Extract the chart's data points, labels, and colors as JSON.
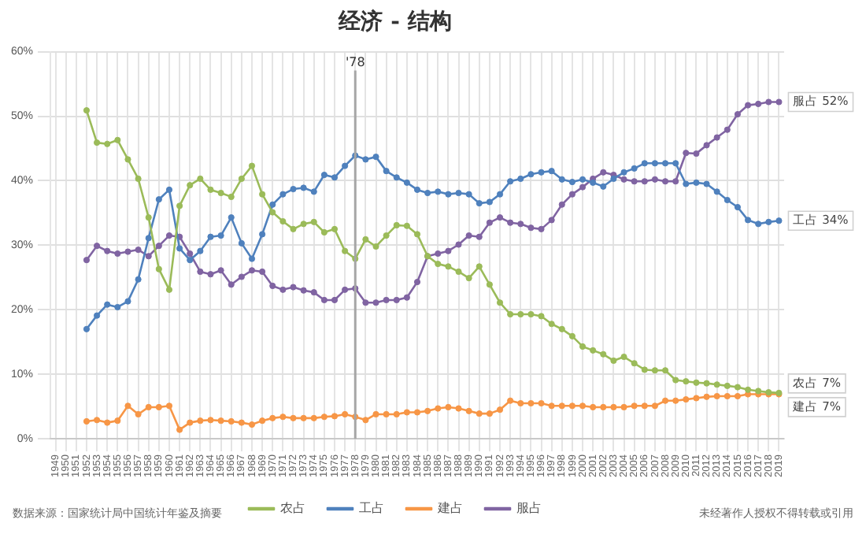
{
  "chart_data": {
    "type": "line",
    "title": "经济 - 结构",
    "categories": [
      "1949",
      "1950",
      "1951",
      "1952",
      "1953",
      "1954",
      "1955",
      "1956",
      "1957",
      "1958",
      "1959",
      "1960",
      "1961",
      "1962",
      "1963",
      "1964",
      "1965",
      "1966",
      "1967",
      "1968",
      "1969",
      "1970",
      "1971",
      "1972",
      "1973",
      "1974",
      "1975",
      "1976",
      "1977",
      "1978",
      "1979",
      "1980",
      "1981",
      "1982",
      "1983",
      "1984",
      "1985",
      "1986",
      "1987",
      "1988",
      "1989",
      "1990",
      "1991",
      "1992",
      "1993",
      "1994",
      "1995",
      "1996",
      "1997",
      "1998",
      "1999",
      "2000",
      "2001",
      "2002",
      "2003",
      "2004",
      "2005",
      "2006",
      "2007",
      "2008",
      "2009",
      "2010",
      "2011",
      "2012",
      "2013",
      "2014",
      "2015",
      "2016",
      "2017",
      "2018",
      "2019"
    ],
    "series": [
      {
        "name": "农占",
        "color": "#9bbb59",
        "values": [
          null,
          null,
          null,
          50.9,
          45.9,
          45.7,
          46.3,
          43.3,
          40.3,
          34.3,
          26.3,
          23.1,
          36.1,
          39.3,
          40.3,
          38.6,
          38.1,
          37.5,
          40.3,
          42.3,
          37.9,
          35.1,
          33.7,
          32.5,
          33.3,
          33.6,
          32.0,
          32.5,
          29.1,
          27.9,
          30.9,
          29.8,
          31.5,
          33.1,
          33.0,
          31.7,
          28.3,
          27.1,
          26.7,
          25.9,
          24.9,
          26.7,
          23.9,
          21.1,
          19.3,
          19.3,
          19.3,
          19.0,
          17.8,
          17.0,
          15.9,
          14.3,
          13.7,
          13.1,
          12.1,
          12.7,
          11.7,
          10.7,
          10.6,
          10.6,
          9.1,
          8.9,
          8.7,
          8.6,
          8.4,
          8.2,
          8.0,
          7.6,
          7.4,
          7.2,
          7.1
        ]
      },
      {
        "name": "工占",
        "color": "#4f81bd",
        "values": [
          null,
          null,
          null,
          17.0,
          19.1,
          20.8,
          20.4,
          21.3,
          24.7,
          31.1,
          37.1,
          38.6,
          29.5,
          27.7,
          29.1,
          31.3,
          31.5,
          34.3,
          30.3,
          27.9,
          31.7,
          36.3,
          37.9,
          38.7,
          38.9,
          38.3,
          40.9,
          40.5,
          42.3,
          43.9,
          43.3,
          43.7,
          41.5,
          40.5,
          39.7,
          38.6,
          38.1,
          38.3,
          37.9,
          38.1,
          37.9,
          36.5,
          36.7,
          37.9,
          39.9,
          40.3,
          41.0,
          41.3,
          41.5,
          40.2,
          39.8,
          40.2,
          39.7,
          39.1,
          40.3,
          41.3,
          41.9,
          42.7,
          42.7,
          42.7,
          42.7,
          39.5,
          39.7,
          39.5,
          38.3,
          37.0,
          35.9,
          33.9,
          33.3,
          33.6,
          33.8
        ]
      },
      {
        "name": "建占",
        "color": "#f79646",
        "values": [
          null,
          null,
          null,
          2.7,
          2.9,
          2.5,
          2.8,
          5.1,
          3.8,
          4.9,
          4.9,
          5.1,
          1.4,
          2.5,
          2.8,
          2.9,
          2.8,
          2.7,
          2.5,
          2.2,
          2.8,
          3.2,
          3.4,
          3.2,
          3.2,
          3.2,
          3.4,
          3.5,
          3.8,
          3.4,
          2.9,
          3.8,
          3.8,
          3.8,
          4.1,
          4.1,
          4.3,
          4.7,
          4.9,
          4.7,
          4.3,
          3.9,
          3.9,
          4.5,
          5.9,
          5.5,
          5.5,
          5.5,
          5.1,
          5.1,
          5.1,
          5.1,
          4.9,
          4.9,
          4.9,
          4.9,
          5.1,
          5.1,
          5.1,
          5.9,
          5.9,
          6.1,
          6.3,
          6.5,
          6.6,
          6.6,
          6.6,
          6.9,
          6.9,
          6.9,
          6.9
        ]
      },
      {
        "name": "服占",
        "color": "#8064a2",
        "values": [
          null,
          null,
          null,
          27.7,
          29.9,
          29.1,
          28.7,
          29.0,
          29.3,
          28.3,
          29.9,
          31.5,
          31.3,
          28.7,
          25.9,
          25.5,
          26.1,
          23.9,
          25.1,
          26.1,
          25.9,
          23.7,
          23.1,
          23.5,
          23.0,
          22.7,
          21.5,
          21.5,
          23.1,
          23.3,
          21.1,
          21.1,
          21.5,
          21.5,
          21.9,
          24.3,
          28.3,
          28.7,
          29.1,
          30.1,
          31.5,
          31.3,
          33.5,
          34.3,
          33.5,
          33.3,
          32.7,
          32.5,
          33.9,
          36.3,
          37.9,
          39.0,
          40.3,
          41.3,
          40.9,
          40.2,
          39.9,
          39.9,
          40.2,
          39.9,
          39.9,
          44.3,
          44.2,
          45.5,
          46.7,
          47.9,
          50.3,
          51.7,
          51.9,
          52.2,
          52.2
        ]
      }
    ],
    "ylim": [
      0,
      60
    ],
    "yticks": [
      {
        "value": 0,
        "label": "0%"
      },
      {
        "value": 10,
        "label": "10%"
      },
      {
        "value": 20,
        "label": "20%"
      },
      {
        "value": 30,
        "label": "30%"
      },
      {
        "value": 40,
        "label": "40%"
      },
      {
        "value": 50,
        "label": "50%"
      },
      {
        "value": 60,
        "label": "60%"
      }
    ],
    "grid": true,
    "legend": "bottom",
    "marker": "circle",
    "line_style": "solid",
    "ref_lines": [
      {
        "axis": "x",
        "value": "1978",
        "label": "'78",
        "color": "#a6a6a6"
      }
    ],
    "annotations": [
      {
        "text": "服占 52%",
        "x": "2019",
        "y": 52.2
      },
      {
        "text": "工占 34%",
        "x": "2019",
        "y": 33.8
      },
      {
        "text": "农占 7%",
        "x": "2019",
        "y": 7.1
      },
      {
        "text": "建占 7%",
        "x": "2019",
        "y": 6.9
      },
      "数据来源：国家统计局中国统计年鉴及摘要",
      "未经著作人授权不得转载或引用"
    ]
  }
}
